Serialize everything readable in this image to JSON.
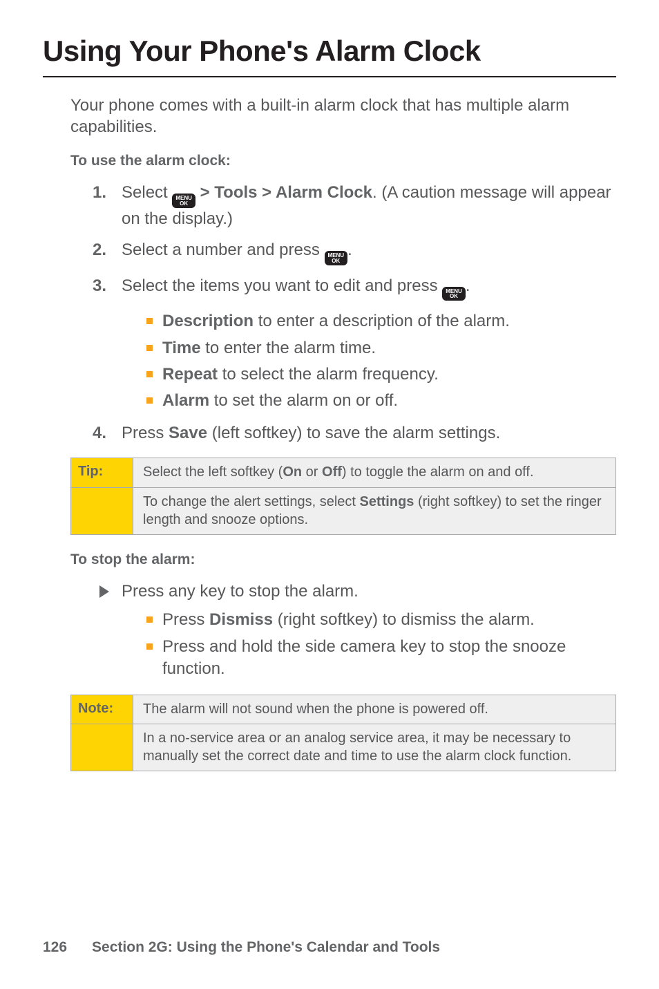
{
  "colors": {
    "text_primary": "#58585a",
    "text_heading": "#231f20",
    "text_bold": "#636466",
    "accent_square": "#f7a41c",
    "callout_label_bg": "#fed403",
    "callout_text_bg": "#efefef",
    "callout_border": "#a7a9ac",
    "key_bg": "#231f20",
    "arrow_fill": "#636466"
  },
  "title": "Using Your Phone's Alarm Clock",
  "intro": "Your phone comes with a built-in alarm clock that has multiple alarm capabilities.",
  "sub1": "To use the alarm clock:",
  "steps": [
    {
      "n": "1.",
      "pre": "Select ",
      "after_key": " > Tools > Alarm Clock",
      "tail": ". (A caution message will appear on the display.)",
      "has_key": true,
      "bold_after": true
    },
    {
      "n": "2.",
      "pre": "Select a number and press ",
      "after_key": ".",
      "tail": "",
      "has_key": true,
      "bold_after": false
    },
    {
      "n": "3.",
      "pre": "Select the items you want to edit and press ",
      "after_key": ".",
      "tail": "",
      "has_key": true,
      "bold_after": false
    }
  ],
  "bullets3": [
    {
      "b": "Description",
      "t": " to enter a description of the alarm."
    },
    {
      "b": "Time",
      "t": " to enter the alarm time."
    },
    {
      "b": "Repeat",
      "t": " to select the alarm frequency."
    },
    {
      "b": "Alarm",
      "t": " to set the alarm on or off."
    }
  ],
  "step4": {
    "n": "4.",
    "pre": "Press ",
    "b": "Save",
    "tail": " (left softkey) to save the alarm settings."
  },
  "tip": {
    "label": "Tip:",
    "row1_pre": "Select the left softkey (",
    "row1_b1": "On",
    "row1_mid": " or ",
    "row1_b2": "Off",
    "row1_tail": ") to toggle the alarm on and off.",
    "row2_pre": "To change the alert settings, select ",
    "row2_b": "Settings",
    "row2_tail": " (right softkey) to set the ringer length and snooze options."
  },
  "sub2": "To stop the alarm:",
  "arrow_step": "Press any key to stop the alarm.",
  "bullets_stop": [
    {
      "pre": "Press ",
      "b": "Dismiss",
      "t": " (right softkey) to dismiss the alarm."
    },
    {
      "pre": "",
      "b": "",
      "t": "Press and hold the side camera key to stop the snooze function."
    }
  ],
  "note": {
    "label": "Note:",
    "row1": "The alarm will not sound when the phone is powered off.",
    "row2": "In a no-service area or an analog service area, it may be necessary to manually set the correct date and time to use the alarm clock function."
  },
  "footer": {
    "page": "126",
    "section": "Section 2G: Using the Phone's Calendar and Tools"
  },
  "key_glyph": {
    "top": "MENU",
    "bot": "OK"
  }
}
